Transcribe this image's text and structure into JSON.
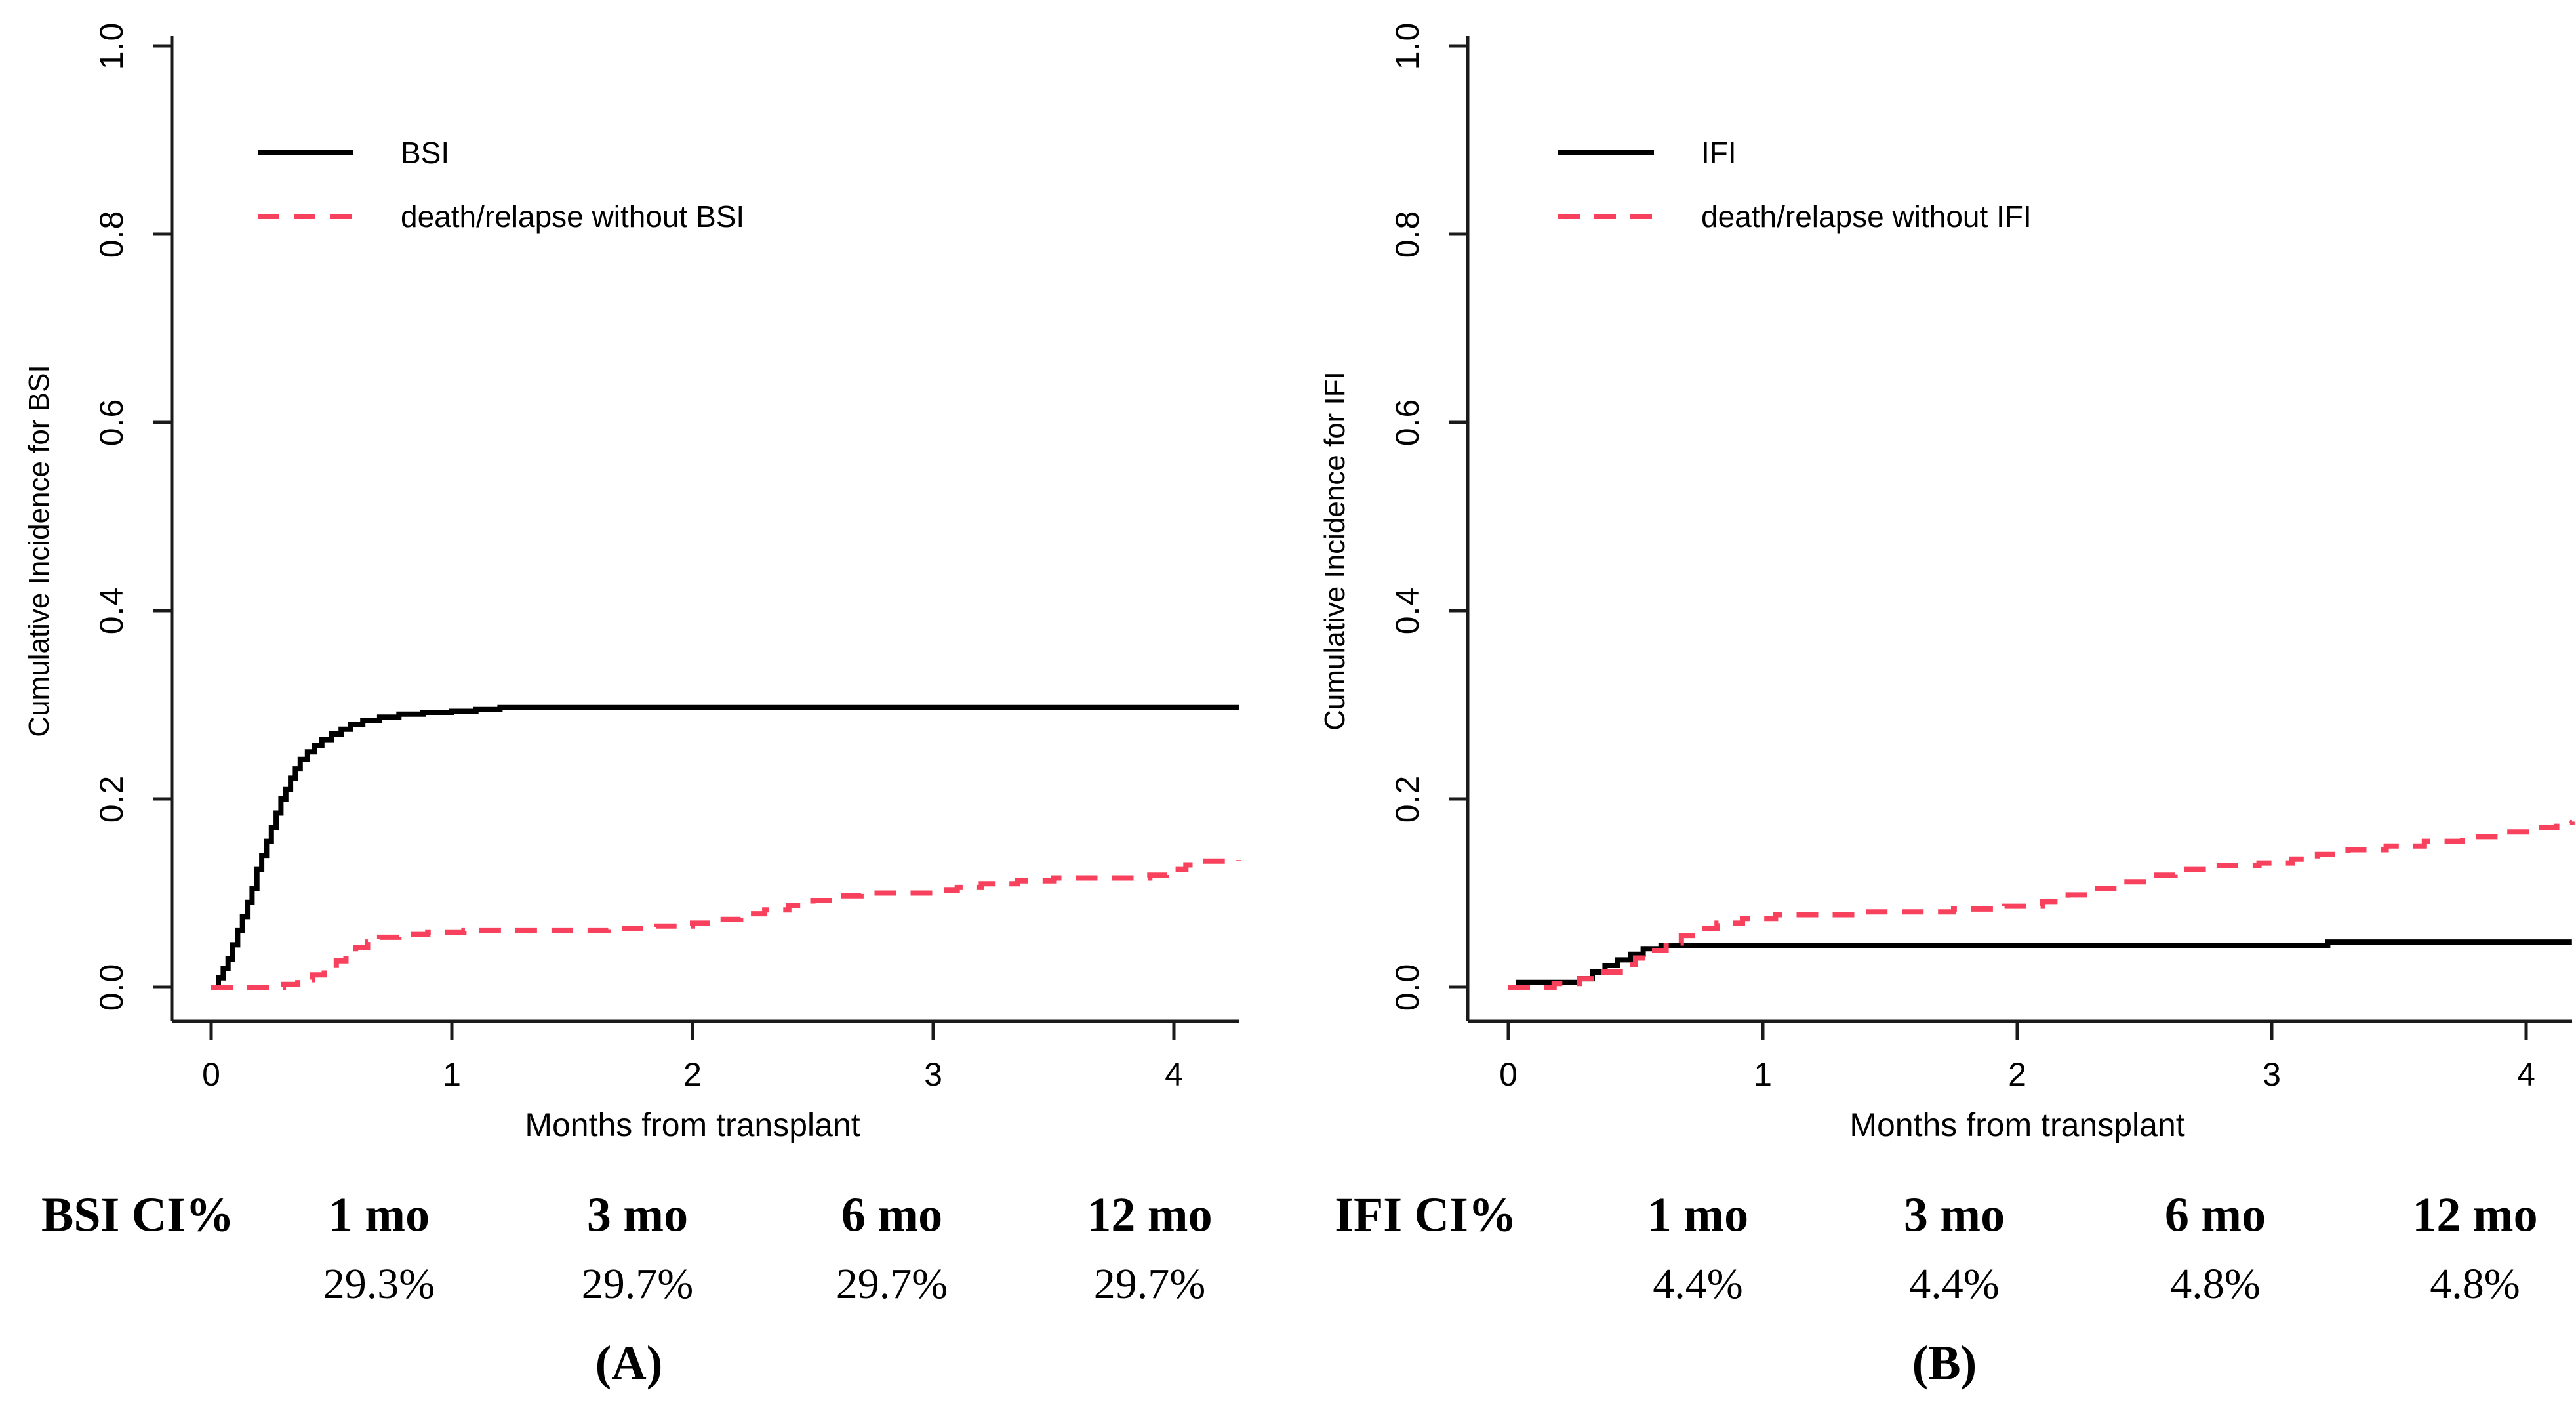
{
  "figure": {
    "background": "#ffffff",
    "accent_red": "#f8415c",
    "curve_black": "#000000",
    "panels": [
      {
        "id": "A",
        "panel_label": "(A)",
        "y_axis_label": "Cumulative Incidence for BSI",
        "x_axis_label": "Months from transplant",
        "y_ticks": [
          "0.0",
          "0.2",
          "0.4",
          "0.6",
          "0.8",
          "1.0"
        ],
        "x_ticks": [
          "0",
          "1",
          "2",
          "3",
          "4"
        ],
        "legend": [
          {
            "label": "BSI",
            "style": "solid",
            "color": "#000000"
          },
          {
            "label": "death/relapse without BSI",
            "style": "dashed",
            "color": "#f8415c"
          }
        ],
        "table": {
          "row_header": "BSI CI%",
          "columns": [
            "1 mo",
            "3 mo",
            "6 mo",
            "12 mo"
          ],
          "values": [
            "29.3%",
            "29.7%",
            "29.7%",
            "29.7%"
          ]
        }
      },
      {
        "id": "B",
        "panel_label": "(B)",
        "y_axis_label": "Cumulative Incidence for IFI",
        "x_axis_label": "Months from transplant",
        "y_ticks": [
          "0.0",
          "0.2",
          "0.4",
          "0.6",
          "0.8",
          "1.0"
        ],
        "x_ticks": [
          "0",
          "1",
          "2",
          "3",
          "4"
        ],
        "legend": [
          {
            "label": "IFI",
            "style": "solid",
            "color": "#000000"
          },
          {
            "label": "death/relapse without IFI",
            "style": "dashed",
            "color": "#f8415c"
          }
        ],
        "table": {
          "row_header": "IFI CI%",
          "columns": [
            "1 mo",
            "3 mo",
            "6 mo",
            "12 mo"
          ],
          "values": [
            "4.4%",
            "4.4%",
            "4.8%",
            "4.8%"
          ]
        }
      }
    ]
  },
  "chart_data": [
    {
      "type": "line",
      "subtype": "step-cumulative-incidence",
      "title": "",
      "xlabel": "Months from transplant",
      "ylabel": "Cumulative Incidence for BSI",
      "xlim": [
        -0.16,
        4.27
      ],
      "ylim": [
        0,
        1
      ],
      "x_ticks": [
        0,
        1,
        2,
        3,
        4
      ],
      "y_ticks": [
        0,
        0.2,
        0.4,
        0.6,
        0.8,
        1.0
      ],
      "grid": false,
      "legend_position": "top-left-inside",
      "series": [
        {
          "name": "BSI",
          "color": "#000000",
          "dash": "solid",
          "step": true,
          "points": [
            [
              0,
              0
            ],
            [
              0.03,
              0.01
            ],
            [
              0.05,
              0.02
            ],
            [
              0.07,
              0.03
            ],
            [
              0.09,
              0.045
            ],
            [
              0.11,
              0.06
            ],
            [
              0.13,
              0.075
            ],
            [
              0.15,
              0.09
            ],
            [
              0.17,
              0.105
            ],
            [
              0.19,
              0.125
            ],
            [
              0.21,
              0.14
            ],
            [
              0.23,
              0.155
            ],
            [
              0.25,
              0.17
            ],
            [
              0.27,
              0.185
            ],
            [
              0.29,
              0.2
            ],
            [
              0.31,
              0.21
            ],
            [
              0.33,
              0.222
            ],
            [
              0.35,
              0.232
            ],
            [
              0.37,
              0.242
            ],
            [
              0.4,
              0.25
            ],
            [
              0.43,
              0.257
            ],
            [
              0.46,
              0.263
            ],
            [
              0.5,
              0.269
            ],
            [
              0.54,
              0.274
            ],
            [
              0.58,
              0.279
            ],
            [
              0.63,
              0.283
            ],
            [
              0.7,
              0.287
            ],
            [
              0.78,
              0.29
            ],
            [
              0.88,
              0.292
            ],
            [
              1.0,
              0.293
            ],
            [
              1.1,
              0.295
            ],
            [
              1.2,
              0.297
            ],
            [
              4.27,
              0.297
            ]
          ]
        },
        {
          "name": "death/relapse without BSI",
          "color": "#f8415c",
          "dash": "dashed",
          "step": true,
          "points": [
            [
              0,
              0
            ],
            [
              0.3,
              0.003
            ],
            [
              0.36,
              0.008
            ],
            [
              0.42,
              0.013
            ],
            [
              0.47,
              0.02
            ],
            [
              0.52,
              0.028
            ],
            [
              0.56,
              0.035
            ],
            [
              0.6,
              0.042
            ],
            [
              0.65,
              0.048
            ],
            [
              0.7,
              0.053
            ],
            [
              0.78,
              0.056
            ],
            [
              0.9,
              0.058
            ],
            [
              1.05,
              0.06
            ],
            [
              1.65,
              0.062
            ],
            [
              1.85,
              0.065
            ],
            [
              2.0,
              0.068
            ],
            [
              2.1,
              0.072
            ],
            [
              2.2,
              0.078
            ],
            [
              2.3,
              0.082
            ],
            [
              2.4,
              0.087
            ],
            [
              2.5,
              0.092
            ],
            [
              2.6,
              0.097
            ],
            [
              2.7,
              0.1
            ],
            [
              3.0,
              0.103
            ],
            [
              3.1,
              0.106
            ],
            [
              3.2,
              0.11
            ],
            [
              3.35,
              0.113
            ],
            [
              3.5,
              0.116
            ],
            [
              3.9,
              0.119
            ],
            [
              3.97,
              0.125
            ],
            [
              4.05,
              0.13
            ],
            [
              4.12,
              0.134
            ],
            [
              4.27,
              0.135
            ]
          ]
        }
      ]
    },
    {
      "type": "line",
      "subtype": "step-cumulative-incidence",
      "title": "",
      "xlabel": "Months from transplant",
      "ylabel": "Cumulative Incidence for IFI",
      "xlim": [
        -0.16,
        4.18
      ],
      "ylim": [
        0,
        1
      ],
      "x_ticks": [
        0,
        1,
        2,
        3,
        4
      ],
      "y_ticks": [
        0,
        0.2,
        0.4,
        0.6,
        0.8,
        1.0
      ],
      "grid": false,
      "legend_position": "top-left-inside",
      "series": [
        {
          "name": "IFI",
          "color": "#000000",
          "dash": "solid",
          "step": true,
          "points": [
            [
              0,
              0
            ],
            [
              0.04,
              0.005
            ],
            [
              0.28,
              0.009
            ],
            [
              0.33,
              0.016
            ],
            [
              0.38,
              0.023
            ],
            [
              0.43,
              0.029
            ],
            [
              0.48,
              0.035
            ],
            [
              0.53,
              0.041
            ],
            [
              0.6,
              0.044
            ],
            [
              3.22,
              0.048
            ],
            [
              4.18,
              0.048
            ]
          ]
        },
        {
          "name": "death/relapse without IFI",
          "color": "#f8415c",
          "dash": "dashed",
          "step": true,
          "points": [
            [
              0,
              0
            ],
            [
              0.18,
              0.004
            ],
            [
              0.28,
              0.009
            ],
            [
              0.36,
              0.016
            ],
            [
              0.44,
              0.024
            ],
            [
              0.5,
              0.031
            ],
            [
              0.56,
              0.039
            ],
            [
              0.62,
              0.047
            ],
            [
              0.68,
              0.055
            ],
            [
              0.74,
              0.062
            ],
            [
              0.82,
              0.068
            ],
            [
              0.92,
              0.073
            ],
            [
              1.05,
              0.077
            ],
            [
              1.4,
              0.08
            ],
            [
              1.75,
              0.083
            ],
            [
              1.95,
              0.086
            ],
            [
              2.1,
              0.091
            ],
            [
              2.2,
              0.098
            ],
            [
              2.3,
              0.105
            ],
            [
              2.42,
              0.112
            ],
            [
              2.52,
              0.119
            ],
            [
              2.62,
              0.125
            ],
            [
              2.75,
              0.129
            ],
            [
              2.95,
              0.132
            ],
            [
              3.08,
              0.136
            ],
            [
              3.18,
              0.141
            ],
            [
              3.3,
              0.146
            ],
            [
              3.45,
              0.15
            ],
            [
              3.6,
              0.155
            ],
            [
              3.75,
              0.16
            ],
            [
              3.9,
              0.165
            ],
            [
              4.02,
              0.17
            ],
            [
              4.12,
              0.175
            ],
            [
              4.18,
              0.176
            ]
          ]
        }
      ]
    }
  ]
}
